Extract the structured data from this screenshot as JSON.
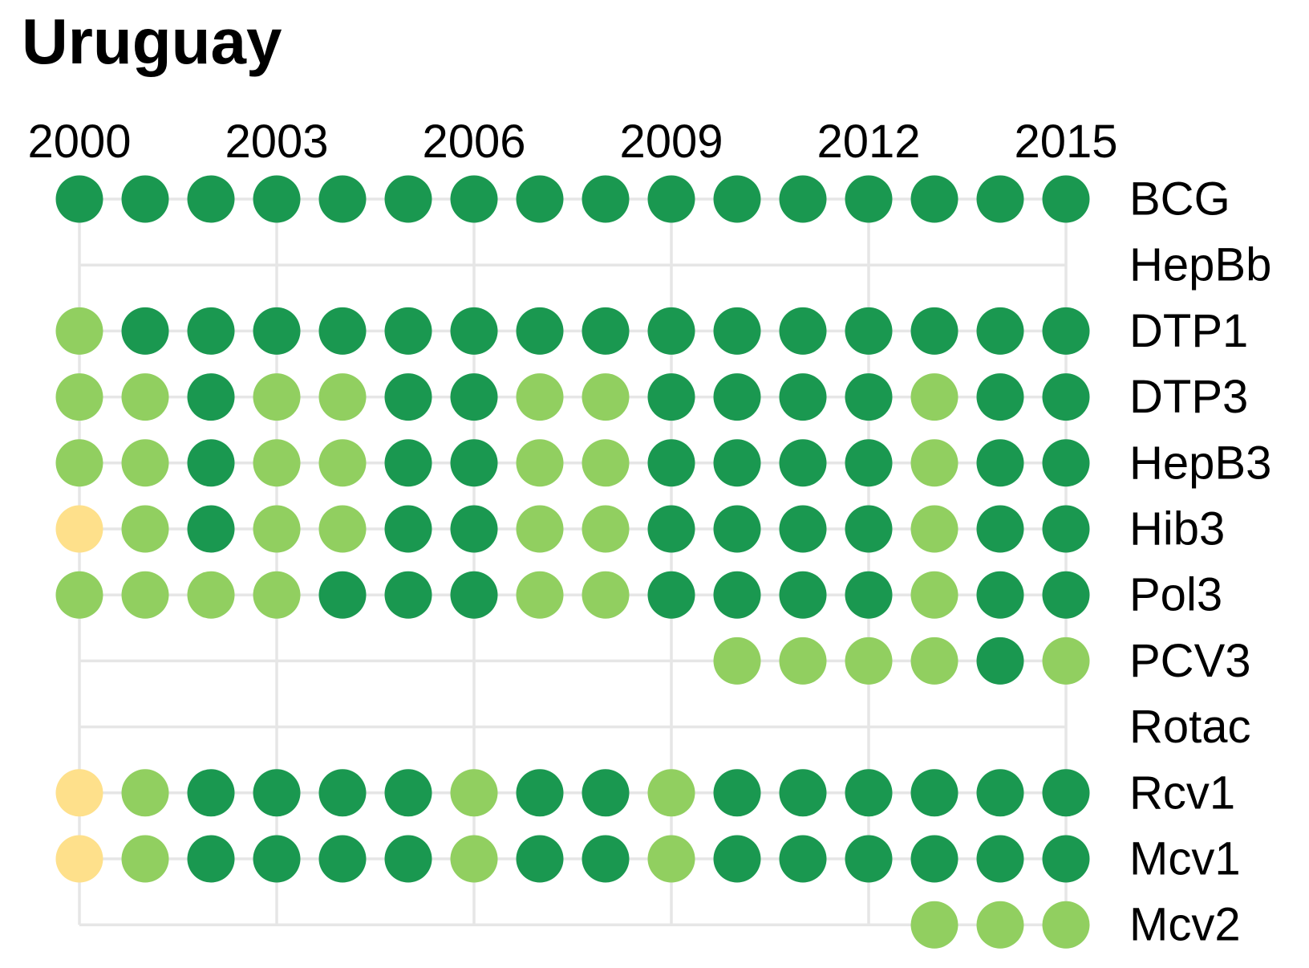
{
  "chart_data": {
    "type": "scatter",
    "title": "Uruguay",
    "x": [
      2000,
      2001,
      2002,
      2003,
      2004,
      2005,
      2006,
      2007,
      2008,
      2009,
      2010,
      2011,
      2012,
      2013,
      2014,
      2015
    ],
    "x_ticks": [
      "2000",
      "2003",
      "2006",
      "2009",
      "2012",
      "2015"
    ],
    "xlim": [
      2000,
      2015
    ],
    "grid": true,
    "colors": {
      "H": "#1a9850",
      "M": "#91cf60",
      "L": "#fee08b"
    },
    "rows": [
      {
        "name": "BCG",
        "values": [
          "H",
          "H",
          "H",
          "H",
          "H",
          "H",
          "H",
          "H",
          "H",
          "H",
          "H",
          "H",
          "H",
          "H",
          "H",
          "H"
        ]
      },
      {
        "name": "HepBb",
        "values": [
          null,
          null,
          null,
          null,
          null,
          null,
          null,
          null,
          null,
          null,
          null,
          null,
          null,
          null,
          null,
          null
        ]
      },
      {
        "name": "DTP1",
        "values": [
          "M",
          "H",
          "H",
          "H",
          "H",
          "H",
          "H",
          "H",
          "H",
          "H",
          "H",
          "H",
          "H",
          "H",
          "H",
          "H"
        ]
      },
      {
        "name": "DTP3",
        "values": [
          "M",
          "M",
          "H",
          "M",
          "M",
          "H",
          "H",
          "M",
          "M",
          "H",
          "H",
          "H",
          "H",
          "M",
          "H",
          "H"
        ]
      },
      {
        "name": "HepB3",
        "values": [
          "M",
          "M",
          "H",
          "M",
          "M",
          "H",
          "H",
          "M",
          "M",
          "H",
          "H",
          "H",
          "H",
          "M",
          "H",
          "H"
        ]
      },
      {
        "name": "Hib3",
        "values": [
          "L",
          "M",
          "H",
          "M",
          "M",
          "H",
          "H",
          "M",
          "M",
          "H",
          "H",
          "H",
          "H",
          "M",
          "H",
          "H"
        ]
      },
      {
        "name": "Pol3",
        "values": [
          "M",
          "M",
          "M",
          "M",
          "H",
          "H",
          "H",
          "M",
          "M",
          "H",
          "H",
          "H",
          "H",
          "M",
          "H",
          "H"
        ]
      },
      {
        "name": "PCV3",
        "values": [
          null,
          null,
          null,
          null,
          null,
          null,
          null,
          null,
          null,
          null,
          "M",
          "M",
          "M",
          "M",
          "H",
          "M"
        ]
      },
      {
        "name": "Rotac",
        "values": [
          null,
          null,
          null,
          null,
          null,
          null,
          null,
          null,
          null,
          null,
          null,
          null,
          null,
          null,
          null,
          null
        ]
      },
      {
        "name": "Rcv1",
        "values": [
          "L",
          "M",
          "H",
          "H",
          "H",
          "H",
          "M",
          "H",
          "H",
          "M",
          "H",
          "H",
          "H",
          "H",
          "H",
          "H"
        ]
      },
      {
        "name": "Mcv1",
        "values": [
          "L",
          "M",
          "H",
          "H",
          "H",
          "H",
          "M",
          "H",
          "H",
          "M",
          "H",
          "H",
          "H",
          "H",
          "H",
          "H"
        ]
      },
      {
        "name": "Mcv2",
        "values": [
          null,
          null,
          null,
          null,
          null,
          null,
          null,
          null,
          null,
          null,
          null,
          null,
          null,
          "M",
          "M",
          "M"
        ]
      }
    ]
  }
}
